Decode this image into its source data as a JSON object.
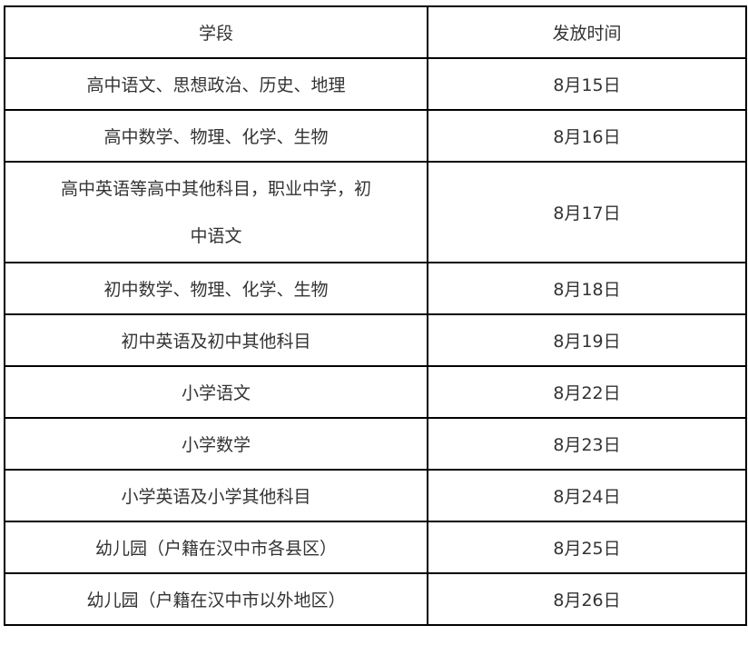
{
  "table": {
    "headers": [
      "学段",
      "发放时间"
    ],
    "rows": [
      {
        "stage": "高中语文、思想政治、历史、地理",
        "date": "8月15日"
      },
      {
        "stage": "高中数学、物理、化学、生物",
        "date": "8月16日"
      },
      {
        "stage": "高中英语等高中其他科目，职业中学，初中语文",
        "date": "8月17日"
      },
      {
        "stage": "初中数学、物理、化学、生物",
        "date": "8月18日"
      },
      {
        "stage": "初中英语及初中其他科目",
        "date": "8月19日"
      },
      {
        "stage": "小学语文",
        "date": "8月22日"
      },
      {
        "stage": "小学数学",
        "date": "8月23日"
      },
      {
        "stage": "小学英语及小学其他科目",
        "date": "8月24日"
      },
      {
        "stage": "幼儿园（户籍在汉中市各县区）",
        "date": "8月25日"
      },
      {
        "stage": "幼儿园（户籍在汉中市以外地区）",
        "date": "8月26日"
      }
    ]
  }
}
